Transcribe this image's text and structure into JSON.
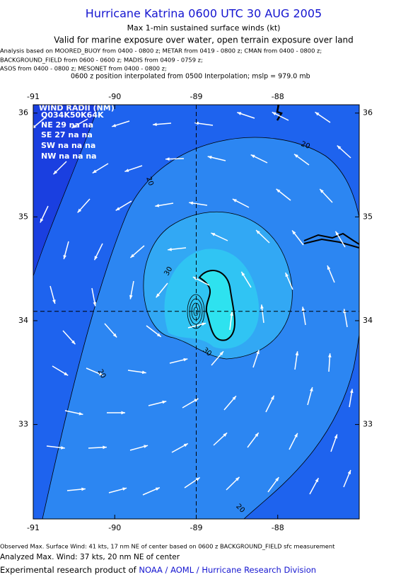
{
  "title": "Hurricane Katrina 0600 UTC 30 AUG 2005",
  "subtitle": "Max 1-min sustained surface winds (kt)",
  "validity": "Valid for marine exposure over water, open terrain exposure over land",
  "analysis_lines": [
    "Analysis based on  MOORED_BUOY from 0400 - 0800 z;  METAR from 0419 - 0800 z;  CMAN from 0400 - 0800 z;",
    "BACKGROUND_FIELD from 0600 - 0600 z;  MADIS from 0409 - 0759 z;",
    "ASOS from 0400 - 0800 z;   MESONET from 0400 - 0800 z;"
  ],
  "position_note": "0600 z position interpolated from 0500 Interpolation; mslp = 979.0 mb",
  "map": {
    "xlim": [
      -91,
      -87
    ],
    "ylim": [
      32.09,
      36.08
    ],
    "xticks": [
      -91,
      -90,
      -89,
      -88
    ],
    "yticks": [
      33,
      34,
      35,
      36
    ],
    "center": {
      "lon": -89,
      "lat": 34.09
    },
    "contour_labels": [
      20,
      20,
      20,
      20,
      30,
      30
    ]
  },
  "wind_radii": {
    "title": "WIND RADII (NM)",
    "header": "Q034K50K64K",
    "rows": [
      "NE 29 na na",
      "SE 27 na na",
      "SW na na na",
      "NW na na na"
    ]
  },
  "footer": {
    "observed": "Observed Max. Surface Wind: 41 kts, 17 nm NE of center based on 0600 z BACKGROUND_FIELD sfc measurement",
    "analyzed": "Analyzed Max. Wind: 37 kts, 20 nm NE of center",
    "credit_prefix": "Experimental research product of ",
    "credit_org": "NOAA / AOML / Hurricane Research Division"
  }
}
